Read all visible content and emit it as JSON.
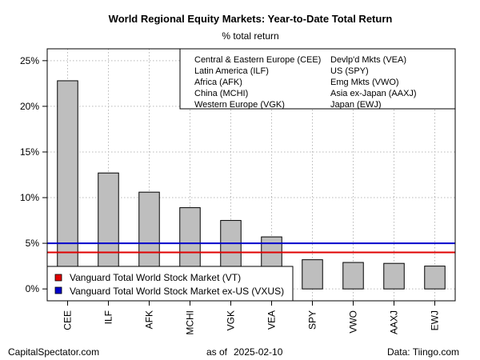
{
  "footer": {
    "left": "CapitalSpectator.com",
    "as_of_label": "as of",
    "date": "2025-02-10",
    "right": "Data: Tiingo.com"
  },
  "chart_data": {
    "type": "bar",
    "title": "World Regional Equity Markets: Year-to-Date Total Return",
    "subtitle": "% total return",
    "xlabel": "",
    "ylabel": "",
    "categories": [
      "CEE",
      "ILF",
      "AFK",
      "MCHI",
      "VGK",
      "VEA",
      "SPY",
      "VWO",
      "AAXJ",
      "EWJ"
    ],
    "values": [
      22.8,
      12.7,
      10.6,
      8.9,
      7.5,
      5.7,
      3.2,
      2.9,
      2.8,
      2.5
    ],
    "ylim": [
      -1.3,
      26.3
    ],
    "yticks": [
      0,
      5,
      10,
      15,
      20,
      25
    ],
    "ytick_labels": [
      "0%",
      "5%",
      "10%",
      "15%",
      "20%",
      "25%"
    ],
    "grid": true,
    "bar_color": "#bebebe",
    "legend_placement": "top-right",
    "legend_entries": [
      "Central & Eastern Europe (CEE)",
      "Latin America (ILF)",
      "Africa (AFK)",
      "China (MCHI)",
      "Western Europe (VGK)",
      "Devlp'd Mkts (VEA)",
      "US (SPY)",
      "Emg Mkts (VWO)",
      "Asia ex-Japan (AAXJ)",
      "Japan (EWJ)"
    ],
    "reference_lines": [
      {
        "name": "Vanguard Total World Stock Market (VT)",
        "value": 4.0,
        "color": "#e00000"
      },
      {
        "name": "Vanguard Total World Stock Market ex-US (VXUS)",
        "value": 5.0,
        "color": "#0000cc"
      }
    ],
    "reference_legend_placement": "bottom-left"
  }
}
